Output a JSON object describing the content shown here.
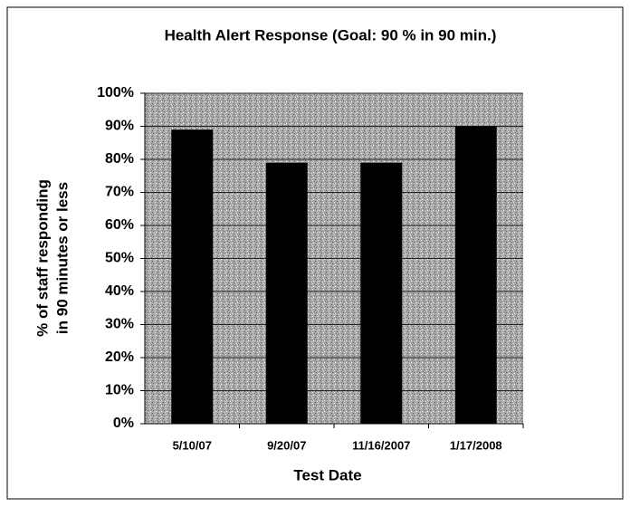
{
  "chart_data": {
    "type": "bar",
    "title": "Health Alert Response (Goal: 90 % in 90 min.)",
    "x_label": "Test Date",
    "y_label": [
      "% of staff responding",
      "in 90 minutes or less"
    ],
    "categories": [
      "5/10/07",
      "9/20/07",
      "11/16/2007",
      "1/17/2008"
    ],
    "values": [
      89,
      79,
      79,
      90
    ],
    "color": "#000000",
    "ylim": [
      0,
      100
    ],
    "yticks": [
      {
        "value": 0,
        "label": "0%"
      },
      {
        "value": 10,
        "label": "10%"
      },
      {
        "value": 20,
        "label": "20%"
      },
      {
        "value": 30,
        "label": "30%"
      },
      {
        "value": 40,
        "label": "40%"
      },
      {
        "value": 50,
        "label": "50%"
      },
      {
        "value": 60,
        "label": "60%"
      },
      {
        "value": 70,
        "label": "70%"
      },
      {
        "value": 80,
        "label": "80%"
      },
      {
        "value": 90,
        "label": "90%"
      },
      {
        "value": 100,
        "label": "100%"
      }
    ],
    "grid": true
  }
}
